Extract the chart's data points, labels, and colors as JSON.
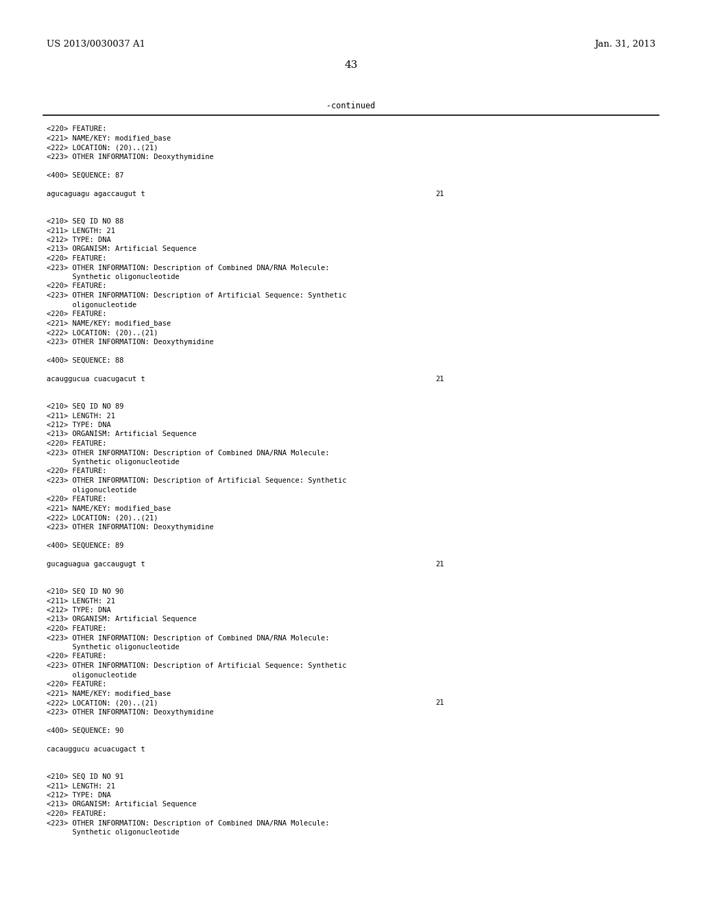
{
  "background_color": "#ffffff",
  "header_left": "US 2013/0030037 A1",
  "header_right": "Jan. 31, 2013",
  "page_number": "43",
  "continued_label": "-continued",
  "content_lines": [
    "<220> FEATURE:",
    "<221> NAME/KEY: modified_base",
    "<222> LOCATION: (20)..(21)",
    "<223> OTHER INFORMATION: Deoxythymidine",
    "",
    "<400> SEQUENCE: 87",
    "",
    "agucaguagu agaccaugut t",
    "",
    "",
    "<210> SEQ ID NO 88",
    "<211> LENGTH: 21",
    "<212> TYPE: DNA",
    "<213> ORGANISM: Artificial Sequence",
    "<220> FEATURE:",
    "<223> OTHER INFORMATION: Description of Combined DNA/RNA Molecule:",
    "      Synthetic oligonucleotide",
    "<220> FEATURE:",
    "<223> OTHER INFORMATION: Description of Artificial Sequence: Synthetic",
    "      oligonucleotide",
    "<220> FEATURE:",
    "<221> NAME/KEY: modified_base",
    "<222> LOCATION: (20)..(21)",
    "<223> OTHER INFORMATION: Deoxythymidine",
    "",
    "<400> SEQUENCE: 88",
    "",
    "acauggucua cuacugacut t",
    "",
    "",
    "<210> SEQ ID NO 89",
    "<211> LENGTH: 21",
    "<212> TYPE: DNA",
    "<213> ORGANISM: Artificial Sequence",
    "<220> FEATURE:",
    "<223> OTHER INFORMATION: Description of Combined DNA/RNA Molecule:",
    "      Synthetic oligonucleotide",
    "<220> FEATURE:",
    "<223> OTHER INFORMATION: Description of Artificial Sequence: Synthetic",
    "      oligonucleotide",
    "<220> FEATURE:",
    "<221> NAME/KEY: modified_base",
    "<222> LOCATION: (20)..(21)",
    "<223> OTHER INFORMATION: Deoxythymidine",
    "",
    "<400> SEQUENCE: 89",
    "",
    "gucaguagua gaccaugugt t",
    "",
    "",
    "<210> SEQ ID NO 90",
    "<211> LENGTH: 21",
    "<212> TYPE: DNA",
    "<213> ORGANISM: Artificial Sequence",
    "<220> FEATURE:",
    "<223> OTHER INFORMATION: Description of Combined DNA/RNA Molecule:",
    "      Synthetic oligonucleotide",
    "<220> FEATURE:",
    "<223> OTHER INFORMATION: Description of Artificial Sequence: Synthetic",
    "      oligonucleotide",
    "<220> FEATURE:",
    "<221> NAME/KEY: modified_base",
    "<222> LOCATION: (20)..(21)",
    "<223> OTHER INFORMATION: Deoxythymidine",
    "",
    "<400> SEQUENCE: 90",
    "",
    "cacauggucu acuacugact t",
    "",
    "",
    "<210> SEQ ID NO 91",
    "<211> LENGTH: 21",
    "<212> TYPE: DNA",
    "<213> ORGANISM: Artificial Sequence",
    "<220> FEATURE:",
    "<223> OTHER INFORMATION: Description of Combined DNA/RNA Molecule:",
    "      Synthetic oligonucleotide"
  ],
  "seq_lines": [
    7,
    27,
    47,
    62
  ],
  "font_size_content": 7.5,
  "font_size_header": 9.5,
  "font_size_page": 11
}
